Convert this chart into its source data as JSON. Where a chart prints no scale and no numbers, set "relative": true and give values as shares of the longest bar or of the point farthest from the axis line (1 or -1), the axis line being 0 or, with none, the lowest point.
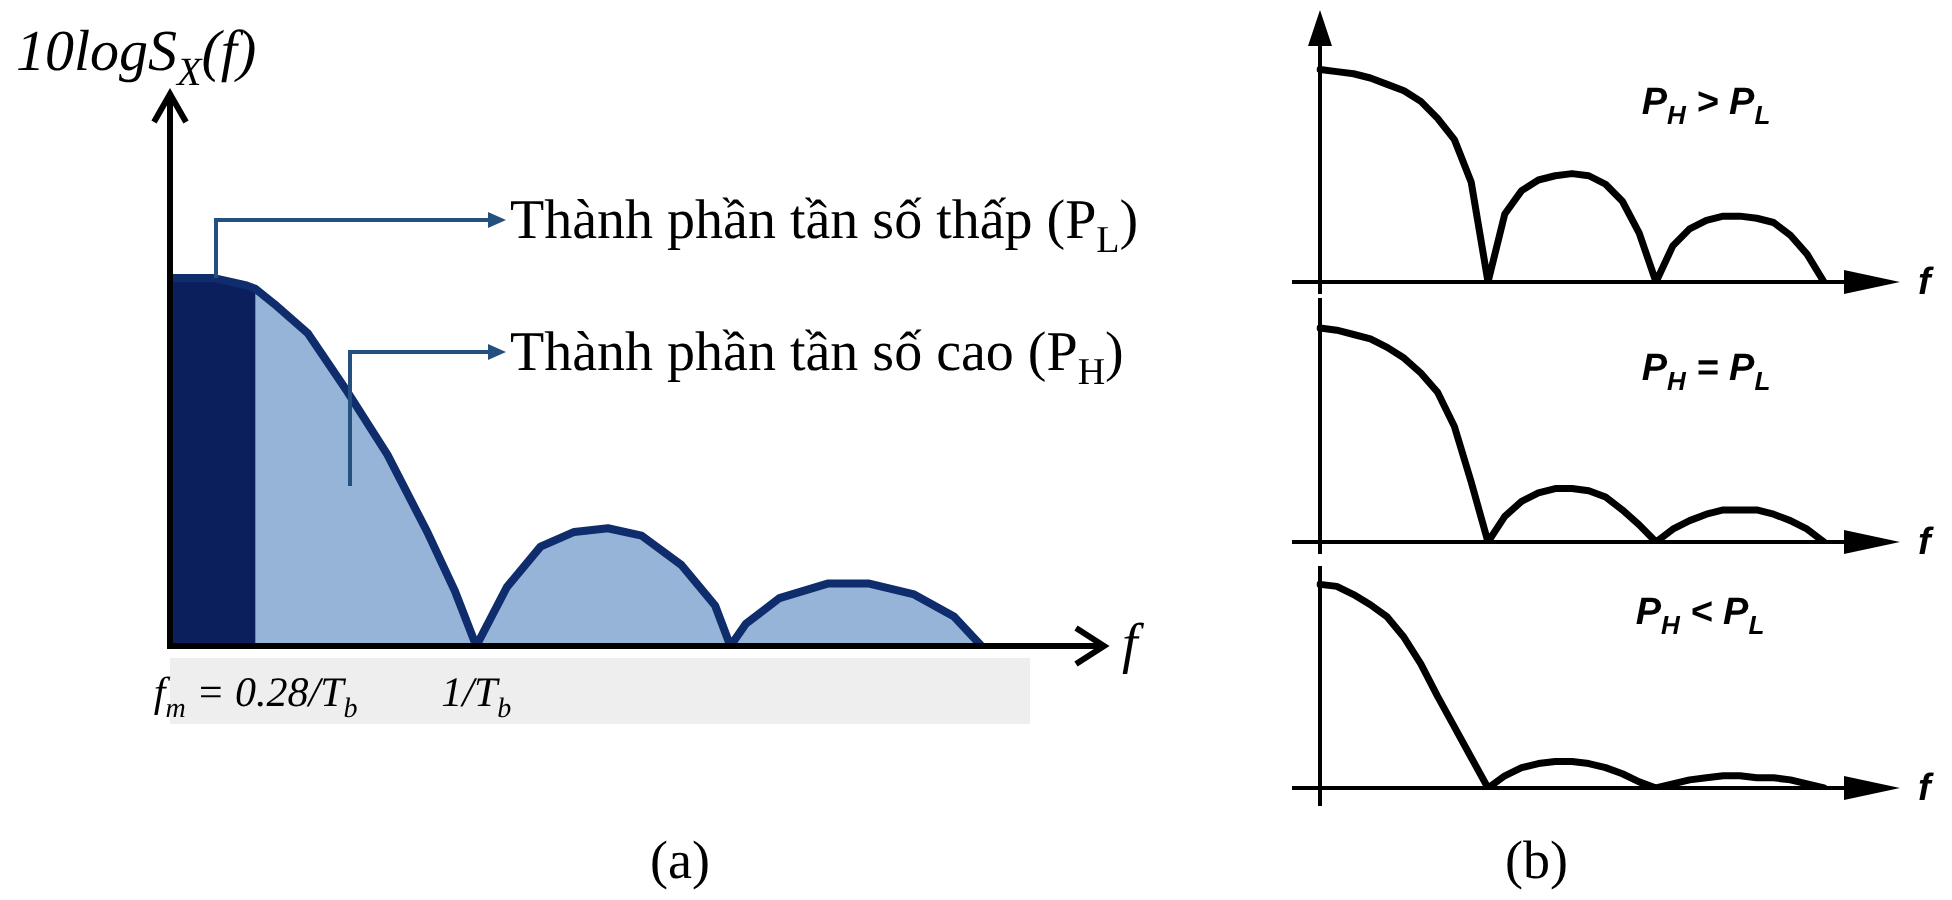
{
  "chart_data": [
    {
      "type": "area",
      "ylabel": "10logS$_{X}$(f)",
      "xlabel": "f",
      "relative": true,
      "xlim": [
        0,
        3.05
      ],
      "xticks": [
        {
          "value": 0.28,
          "label": "f$_{m}$ = 0.28/T$_{b}$"
        },
        {
          "value": 1,
          "label": "1/T$_{b}$"
        }
      ],
      "tick_labels": "x",
      "series": [
        {
          "type": "area",
          "color": "#0b1f5c",
          "x": [
            0,
            0.14,
            0.25,
            0.28
          ],
          "values": [
            1,
            1,
            0.98,
            0.97
          ]
        },
        {
          "type": "area",
          "color": "#96b3d8",
          "x": [
            0.28,
            0.34,
            0.45,
            0.58,
            0.71,
            0.84,
            0.93,
            1.0,
            1.1,
            1.21,
            1.32,
            1.43,
            1.54,
            1.67,
            1.78,
            1.83,
            1.88,
            1.99,
            2.15,
            2.28,
            2.43,
            2.56,
            2.65
          ],
          "values": [
            0.97,
            0.93,
            0.85,
            0.69,
            0.52,
            0.31,
            0.15,
            0,
            0.16,
            0.27,
            0.31,
            0.32,
            0.3,
            0.22,
            0.11,
            0,
            0.06,
            0.13,
            0.17,
            0.17,
            0.14,
            0.08,
            0
          ]
        },
        {
          "type": "line",
          "color": "#0f2c6c",
          "x": [
            0,
            0.14,
            0.25,
            0.28,
            0.34,
            0.45,
            0.58,
            0.71,
            0.84,
            0.93,
            1.0,
            1.1,
            1.21,
            1.32,
            1.43,
            1.54,
            1.67,
            1.78,
            1.83,
            1.88,
            1.99,
            2.15,
            2.28,
            2.43,
            2.56,
            2.65
          ],
          "values": [
            1,
            1,
            0.98,
            0.97,
            0.93,
            0.85,
            0.69,
            0.52,
            0.31,
            0.15,
            0,
            0.16,
            0.27,
            0.31,
            0.32,
            0.3,
            0.22,
            0.11,
            0,
            0.06,
            0.13,
            0.17,
            0.17,
            0.14,
            0.08,
            0
          ]
        }
      ],
      "annotations": [
        {
          "text": "Thành phần tần số thấp (P$_{L}$)",
          "x": 0.15,
          "y": 1
        },
        "Thành phần tần số cao (P$_{H}$)",
        "(a)"
      ]
    },
    {
      "type": "line",
      "xlabel": "f",
      "relative": true,
      "tick_labels": false,
      "categories": [
        null,
        null,
        null,
        null,
        null,
        null,
        null,
        null,
        null,
        null,
        null,
        null,
        null,
        null,
        null,
        null,
        null,
        null,
        null,
        null,
        null,
        null,
        null,
        null,
        null,
        null,
        null,
        null,
        null,
        null,
        null
      ],
      "color": "#000000",
      "values": [
        1,
        0.99,
        0.98,
        0.96,
        0.93,
        0.9,
        0.85,
        0.77,
        0.67,
        0.47,
        0,
        0.32,
        0.43,
        0.48,
        0.5,
        0.51,
        0.5,
        0.46,
        0.38,
        0.23,
        0,
        0.17,
        0.25,
        0.29,
        0.31,
        0.31,
        0.3,
        0.28,
        0.22,
        0.13,
        0
      ],
      "annotations": [
        "P$_{H}$ > P$_{L}$"
      ]
    },
    {
      "type": "line",
      "xlabel": "f",
      "relative": true,
      "tick_labels": false,
      "categories": [
        null,
        null,
        null,
        null,
        null,
        null,
        null,
        null,
        null,
        null,
        null,
        null,
        null,
        null,
        null,
        null,
        null,
        null,
        null,
        null,
        null,
        null,
        null,
        null,
        null,
        null,
        null,
        null,
        null,
        null,
        null
      ],
      "color": "#000000",
      "values": [
        1,
        0.99,
        0.97,
        0.95,
        0.91,
        0.86,
        0.79,
        0.7,
        0.54,
        0.28,
        0,
        0.12,
        0.19,
        0.23,
        0.25,
        0.25,
        0.24,
        0.21,
        0.15,
        0.08,
        0,
        0.06,
        0.1,
        0.13,
        0.15,
        0.15,
        0.15,
        0.13,
        0.1,
        0.06,
        0
      ],
      "annotations": [
        "P$_{H}$ = P$_{L}$"
      ]
    },
    {
      "type": "line",
      "xlabel": "f",
      "relative": true,
      "tick_labels": false,
      "categories": [
        null,
        null,
        null,
        null,
        null,
        null,
        null,
        null,
        null,
        null,
        null,
        null,
        null,
        null,
        null,
        null,
        null,
        null,
        null,
        null,
        null,
        null,
        null,
        null,
        null,
        null,
        null,
        null,
        null,
        null,
        null
      ],
      "color": "#000000",
      "values": [
        1,
        0.99,
        0.95,
        0.9,
        0.84,
        0.74,
        0.61,
        0.45,
        0.3,
        0.15,
        0,
        0.06,
        0.1,
        0.12,
        0.13,
        0.13,
        0.12,
        0.1,
        0.07,
        0.03,
        0,
        0.02,
        0.04,
        0.05,
        0.06,
        0.06,
        0.05,
        0.05,
        0.04,
        0.02,
        0
      ],
      "annotations": [
        "P$_{H}$ < P$_{L}$",
        "(b)"
      ]
    }
  ]
}
